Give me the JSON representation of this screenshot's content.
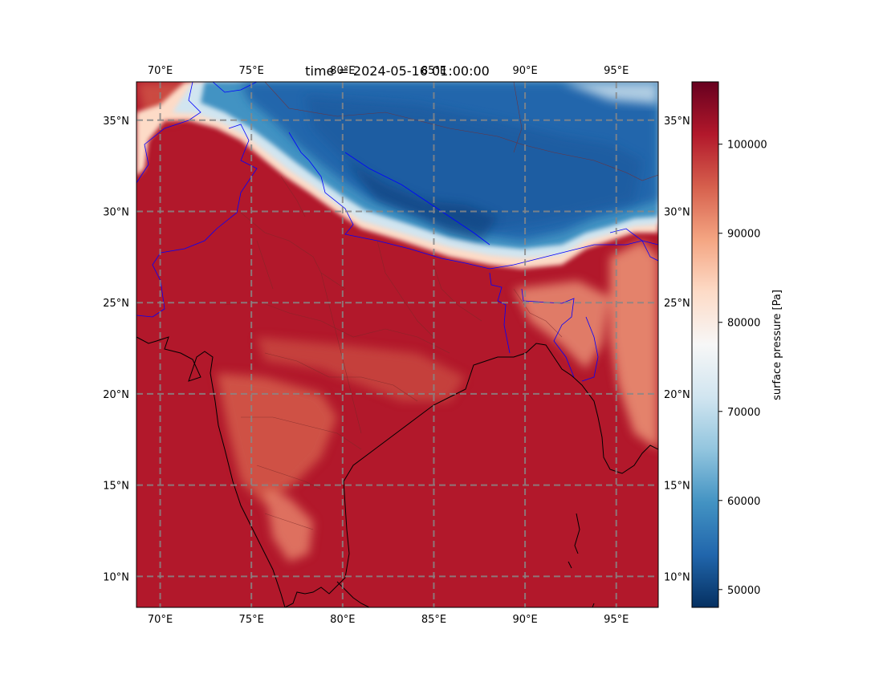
{
  "title": "time = 2024-05-16 01:00:00",
  "map": {
    "lon_range": [
      68.7,
      97.3
    ],
    "lat_range": [
      8.3,
      37.1
    ],
    "lon_ticks": [
      {
        "value": 70,
        "label": "70°E"
      },
      {
        "value": 75,
        "label": "75°E"
      },
      {
        "value": 80,
        "label": "80°E"
      },
      {
        "value": 85,
        "label": "85°E"
      },
      {
        "value": 90,
        "label": "90°E"
      },
      {
        "value": 95,
        "label": "95°E"
      }
    ],
    "lat_ticks": [
      {
        "value": 10,
        "label": "10°N"
      },
      {
        "value": 15,
        "label": "15°N"
      },
      {
        "value": 20,
        "label": "20°N"
      },
      {
        "value": 25,
        "label": "25°N"
      },
      {
        "value": 30,
        "label": "30°N"
      },
      {
        "value": 35,
        "label": "35°N"
      }
    ],
    "gridlines": true,
    "colors": {
      "high_pressure": "#b2182b",
      "low_pressure": "#053061",
      "coastline": "#000000",
      "country_border": "#0000ff",
      "state_border": "#7a2a2a",
      "gridline": "#888888"
    }
  },
  "colorbar": {
    "label": "surface pressure [Pa]",
    "range": [
      48000,
      107000
    ],
    "ticks": [
      {
        "value": 50000,
        "label": "50000"
      },
      {
        "value": 60000,
        "label": "60000"
      },
      {
        "value": 70000,
        "label": "70000"
      },
      {
        "value": 80000,
        "label": "80000"
      },
      {
        "value": 90000,
        "label": "90000"
      },
      {
        "value": 100000,
        "label": "100000"
      }
    ],
    "colormap": [
      "#053061",
      "#2166ac",
      "#4393c3",
      "#92c5de",
      "#d1e5f0",
      "#f7f7f7",
      "#fddbc7",
      "#f4a582",
      "#d6604d",
      "#b2182b",
      "#67001f"
    ]
  }
}
